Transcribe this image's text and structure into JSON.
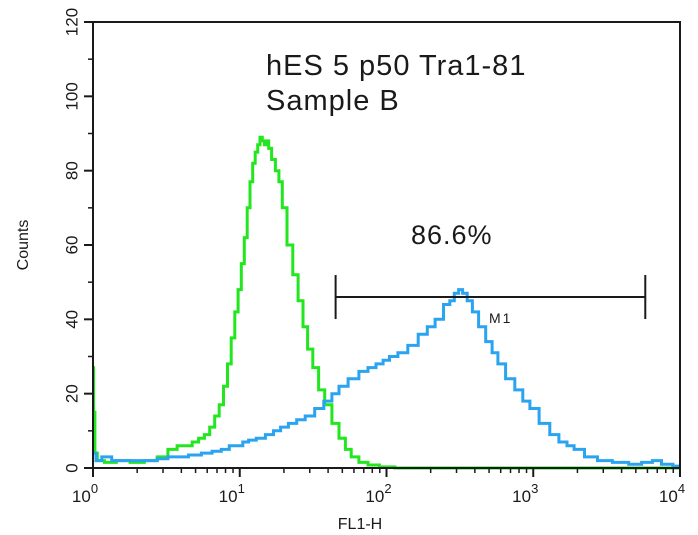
{
  "chart_data": {
    "type": "line",
    "title_lines": [
      "hES 5 p50 Tra1-81",
      "Sample B"
    ],
    "xlabel": "FL1-H",
    "ylabel": "Counts",
    "xscale": "log",
    "xlim": [
      1,
      10000
    ],
    "ylim": [
      0,
      120
    ],
    "y_ticks": [
      "0",
      "20",
      "40",
      "60",
      "80",
      "100",
      "120"
    ],
    "x_ticks": [
      {
        "base": "10",
        "exp": "0",
        "value": 1
      },
      {
        "base": "10",
        "exp": "1",
        "value": 10
      },
      {
        "base": "10",
        "exp": "2",
        "value": 100
      },
      {
        "base": "10",
        "exp": "3",
        "value": 1000
      },
      {
        "base": "10",
        "exp": "4",
        "value": 10000
      }
    ],
    "grid": false,
    "marker": {
      "label": "M1",
      "x_start": 45,
      "x_end": 5800,
      "y": 46,
      "percent_label": "86.6%"
    },
    "series": [
      {
        "color": "#22e61e",
        "points": [
          [
            1.0,
            27
          ],
          [
            1.02,
            15
          ],
          [
            1.04,
            4
          ],
          [
            1.1,
            2
          ],
          [
            1.3,
            1.5
          ],
          [
            1.6,
            2
          ],
          [
            2,
            1.5
          ],
          [
            2.5,
            2
          ],
          [
            3,
            3
          ],
          [
            3.5,
            5
          ],
          [
            4,
            6
          ],
          [
            4.5,
            6
          ],
          [
            5,
            7
          ],
          [
            5.5,
            8
          ],
          [
            6,
            9
          ],
          [
            6.5,
            11
          ],
          [
            7,
            14
          ],
          [
            7.5,
            17
          ],
          [
            8,
            22
          ],
          [
            8.5,
            28
          ],
          [
            9,
            35
          ],
          [
            9.5,
            42
          ],
          [
            10,
            48
          ],
          [
            10.5,
            55
          ],
          [
            11,
            62
          ],
          [
            11.5,
            70
          ],
          [
            12,
            77
          ],
          [
            12.5,
            82
          ],
          [
            13,
            85
          ],
          [
            13.5,
            87
          ],
          [
            14,
            89
          ],
          [
            14.5,
            88
          ],
          [
            15,
            87
          ],
          [
            15.5,
            88
          ],
          [
            16,
            86
          ],
          [
            17,
            83
          ],
          [
            18,
            80
          ],
          [
            19,
            77
          ],
          [
            20,
            70
          ],
          [
            22,
            60
          ],
          [
            24,
            52
          ],
          [
            26,
            45
          ],
          [
            28,
            38
          ],
          [
            30,
            32
          ],
          [
            33,
            27
          ],
          [
            36,
            21
          ],
          [
            40,
            17
          ],
          [
            45,
            12
          ],
          [
            50,
            8
          ],
          [
            55,
            5
          ],
          [
            60,
            3
          ],
          [
            70,
            1.5
          ],
          [
            80,
            0.8
          ],
          [
            100,
            0.3
          ],
          [
            130,
            0
          ],
          [
            10000,
            0
          ]
        ]
      },
      {
        "color": "#2aa3f0",
        "points": [
          [
            1.0,
            4
          ],
          [
            1.1,
            2
          ],
          [
            1.2,
            3
          ],
          [
            1.5,
            2
          ],
          [
            2,
            2
          ],
          [
            2.5,
            2
          ],
          [
            3,
            2.5
          ],
          [
            3.5,
            3
          ],
          [
            4,
            3
          ],
          [
            5,
            3.5
          ],
          [
            6,
            4
          ],
          [
            7,
            4.5
          ],
          [
            8,
            5
          ],
          [
            9,
            6
          ],
          [
            10,
            6
          ],
          [
            11,
            7
          ],
          [
            12,
            7.5
          ],
          [
            14,
            8
          ],
          [
            16,
            9
          ],
          [
            18,
            10
          ],
          [
            20,
            11
          ],
          [
            23,
            12
          ],
          [
            26,
            13
          ],
          [
            30,
            14
          ],
          [
            35,
            16
          ],
          [
            40,
            18
          ],
          [
            45,
            20
          ],
          [
            50,
            22
          ],
          [
            60,
            24
          ],
          [
            70,
            26
          ],
          [
            80,
            27
          ],
          [
            90,
            28
          ],
          [
            100,
            29
          ],
          [
            110,
            30
          ],
          [
            130,
            31
          ],
          [
            150,
            33
          ],
          [
            180,
            36
          ],
          [
            200,
            38
          ],
          [
            230,
            40
          ],
          [
            260,
            44
          ],
          [
            280,
            45
          ],
          [
            300,
            47
          ],
          [
            320,
            48
          ],
          [
            340,
            47
          ],
          [
            370,
            45
          ],
          [
            400,
            42
          ],
          [
            450,
            38
          ],
          [
            500,
            34
          ],
          [
            550,
            31
          ],
          [
            600,
            28
          ],
          [
            700,
            24
          ],
          [
            800,
            21
          ],
          [
            900,
            18
          ],
          [
            1000,
            16
          ],
          [
            1200,
            12
          ],
          [
            1400,
            9
          ],
          [
            1600,
            7
          ],
          [
            1800,
            6
          ],
          [
            2000,
            5
          ],
          [
            2500,
            3
          ],
          [
            3000,
            2
          ],
          [
            4000,
            1.5
          ],
          [
            5000,
            1
          ],
          [
            6000,
            1.5
          ],
          [
            7000,
            2
          ],
          [
            8000,
            1
          ],
          [
            10000,
            0.5
          ]
        ]
      }
    ]
  }
}
